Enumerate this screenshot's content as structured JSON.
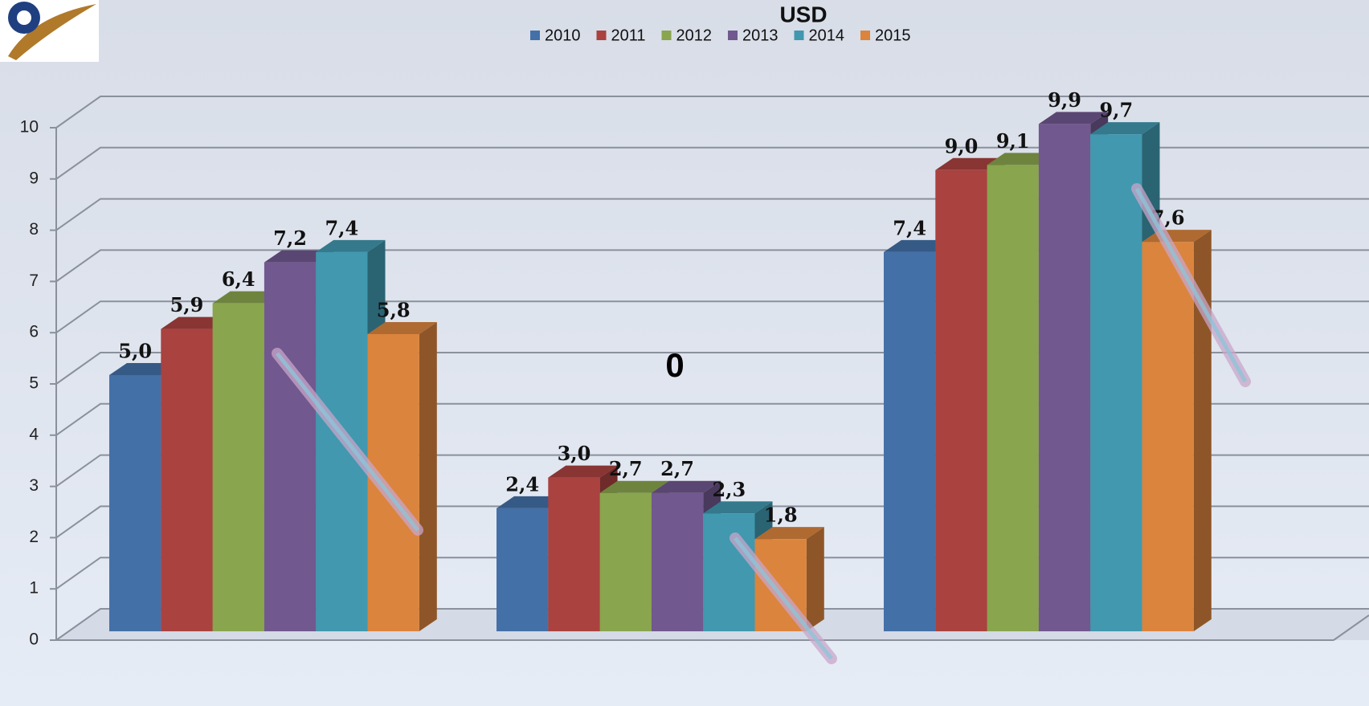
{
  "chart_data": {
    "type": "bar3d",
    "title": "USD",
    "annotation": "0",
    "categories": [
      null,
      null,
      null
    ],
    "series": [
      {
        "name": "2010",
        "color": "#4470a8",
        "values": [
          5.0,
          2.4,
          7.4
        ],
        "value_labels": [
          "5,0",
          "2,4",
          "7,4"
        ]
      },
      {
        "name": "2011",
        "color": "#aa4240",
        "values": [
          5.9,
          3.0,
          9.0
        ],
        "value_labels": [
          "5,9",
          "3,0",
          "9,0"
        ]
      },
      {
        "name": "2012",
        "color": "#89a54e",
        "values": [
          6.4,
          2.7,
          9.1
        ],
        "value_labels": [
          "6,4",
          "2,7",
          "9,1"
        ]
      },
      {
        "name": "2013",
        "color": "#71588f",
        "values": [
          7.2,
          2.7,
          9.9
        ],
        "value_labels": [
          "7,2",
          "2,7",
          "9,9"
        ]
      },
      {
        "name": "2014",
        "color": "#4198af",
        "values": [
          7.4,
          2.3,
          9.7
        ],
        "value_labels": [
          "7,4",
          "2,3",
          "9,7"
        ]
      },
      {
        "name": "2015",
        "color": "#db843d",
        "values": [
          5.8,
          1.8,
          7.6
        ],
        "value_labels": [
          "5,8",
          "1,8",
          "7,6"
        ]
      }
    ],
    "ylim": [
      0,
      10
    ],
    "yticks": [
      0,
      1,
      2,
      3,
      4,
      5,
      6,
      7,
      8,
      9,
      10
    ],
    "grid": true,
    "legend": "top"
  }
}
